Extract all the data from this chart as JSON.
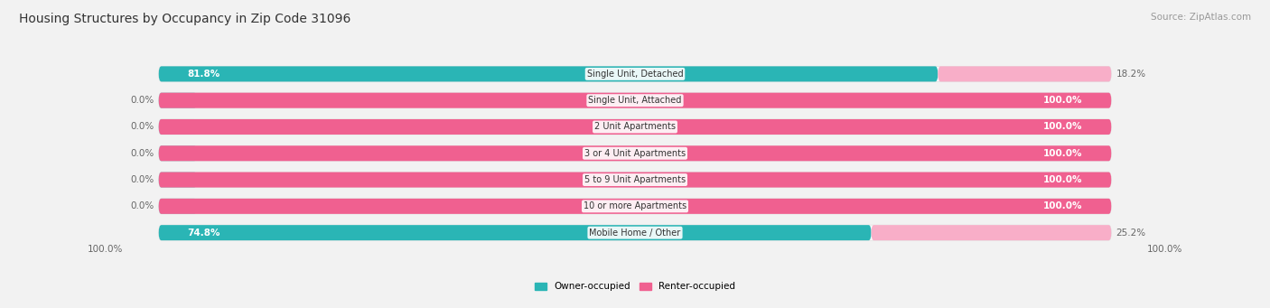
{
  "title": "Housing Structures by Occupancy in Zip Code 31096",
  "source": "Source: ZipAtlas.com",
  "categories": [
    "Single Unit, Detached",
    "Single Unit, Attached",
    "2 Unit Apartments",
    "3 or 4 Unit Apartments",
    "5 to 9 Unit Apartments",
    "10 or more Apartments",
    "Mobile Home / Other"
  ],
  "owner_pct": [
    81.8,
    0.0,
    0.0,
    0.0,
    0.0,
    0.0,
    74.8
  ],
  "renter_pct": [
    18.2,
    100.0,
    100.0,
    100.0,
    100.0,
    100.0,
    25.2
  ],
  "owner_color": "#2ab5b5",
  "renter_color_full": "#f06090",
  "renter_color_partial": "#f8aec8",
  "owner_label": "Owner-occupied",
  "renter_label": "Renter-occupied",
  "title_fontsize": 10,
  "source_fontsize": 7.5,
  "bar_label_fontsize": 7.5,
  "cat_label_fontsize": 7.0,
  "axis_label_fontsize": 7.5
}
